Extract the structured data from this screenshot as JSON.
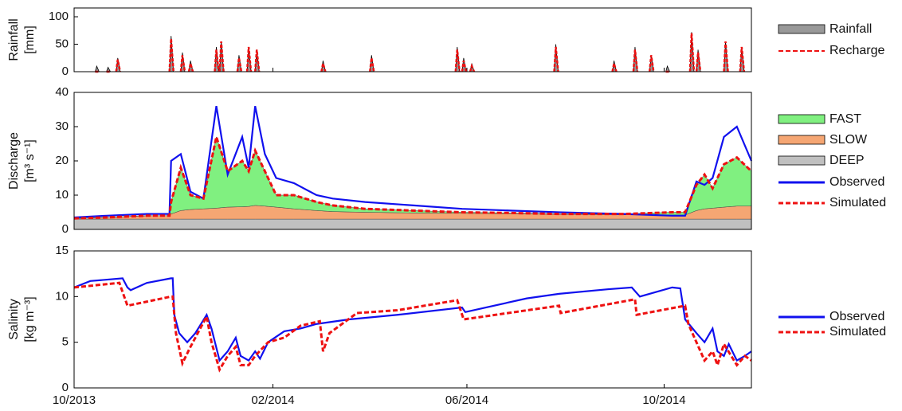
{
  "chart_data": [
    {
      "type": "bar",
      "ylabel": [
        "Rainfall",
        "[mm]"
      ],
      "xlim": [
        0,
        419
      ],
      "ylim": [
        0,
        116
      ],
      "yticks": [
        0,
        50,
        100
      ],
      "series": [
        {
          "name": "Rainfall",
          "color": "#999999",
          "kind": "spike",
          "x": [
            14,
            21,
            27,
            60,
            67,
            72,
            88,
            91,
            102,
            108,
            113,
            154,
            184,
            237,
            241,
            246,
            298,
            334,
            347,
            357,
            367,
            382,
            386,
            403,
            413
          ],
          "values": [
            10,
            8,
            25,
            65,
            35,
            20,
            45,
            55,
            30,
            45,
            40,
            20,
            30,
            45,
            25,
            15,
            50,
            20,
            45,
            30,
            10,
            72,
            40,
            55,
            45
          ]
        },
        {
          "name": "Recharge",
          "color": "#ee1111",
          "kind": "spike",
          "line_style": "dashed",
          "x": [
            14,
            21,
            27,
            60,
            67,
            72,
            88,
            91,
            102,
            108,
            113,
            154,
            184,
            237,
            241,
            246,
            298,
            334,
            347,
            357,
            367,
            382,
            386,
            403,
            413
          ],
          "values": [
            0,
            0,
            22,
            60,
            30,
            15,
            40,
            55,
            25,
            45,
            40,
            15,
            25,
            40,
            20,
            10,
            45,
            15,
            40,
            30,
            0,
            70,
            35,
            55,
            45
          ]
        }
      ]
    },
    {
      "type": "area",
      "ylabel": [
        "Discharge",
        "[m³ s⁻¹]"
      ],
      "xlim": [
        0,
        419
      ],
      "ylim": [
        0,
        40
      ],
      "yticks": [
        0,
        10,
        20,
        30,
        40
      ],
      "x": [
        0,
        20,
        45,
        59,
        60,
        66,
        72,
        80,
        88,
        95,
        104,
        108,
        112,
        118,
        125,
        136,
        150,
        160,
        180,
        210,
        240,
        270,
        300,
        340,
        370,
        378,
        385,
        390,
        395,
        402,
        410,
        419
      ],
      "series": [
        {
          "name": "FAST",
          "color": "#80f080",
          "kind": "area",
          "values": [
            0,
            0,
            0,
            0,
            3.5,
            12.5,
            4.2,
            3,
            20.8,
            10.5,
            13.4,
            10.3,
            16,
            10.2,
            3.5,
            4,
            2.5,
            1.8,
            1,
            0.7,
            0.3,
            0.2,
            0.1,
            0.2,
            0.8,
            0.8,
            7.5,
            10,
            5.8,
            12.5,
            14.2,
            10.2
          ]
        },
        {
          "name": "SLOW",
          "color": "#f5a673",
          "kind": "area",
          "values": [
            0.2,
            0.5,
            1,
            1,
            1.5,
            2.5,
            2.8,
            3,
            3.2,
            3.5,
            3.6,
            3.7,
            4,
            3.8,
            3.5,
            3,
            2.5,
            2.2,
            2,
            1.8,
            1.7,
            1.6,
            1.4,
            1.3,
            1.2,
            1.2,
            2.5,
            3,
            3.2,
            3.5,
            3.8,
            3.8
          ]
        },
        {
          "name": "DEEP",
          "color": "#c0c0c0",
          "kind": "area",
          "values": [
            3,
            3,
            3,
            3,
            3,
            3,
            3,
            3,
            3,
            3,
            3,
            3,
            3,
            3,
            3,
            3,
            3,
            3,
            3,
            3,
            3,
            3,
            3,
            3,
            3,
            3,
            3,
            3,
            3,
            3,
            3,
            3
          ]
        },
        {
          "name": "Observed",
          "color": "#1010ee",
          "kind": "line",
          "values": [
            3.5,
            4,
            4.5,
            4.5,
            20,
            22,
            11,
            9,
            36,
            16,
            27,
            18,
            36,
            22,
            15,
            13.5,
            10,
            9,
            8,
            7,
            6,
            5.5,
            5,
            4.5,
            4,
            4,
            14,
            13,
            15,
            27,
            30,
            20
          ]
        },
        {
          "name": "Simulated",
          "color": "#ee1111",
          "kind": "line",
          "line_style": "dashed",
          "values": [
            3.2,
            3.5,
            4,
            4,
            8,
            18,
            10,
            9,
            27,
            17,
            20,
            17,
            23,
            17,
            10,
            10,
            8,
            7,
            6,
            5.5,
            5,
            4.8,
            4.5,
            4.5,
            5,
            5,
            13,
            16,
            12,
            19,
            21,
            17
          ]
        }
      ]
    },
    {
      "type": "line",
      "ylabel": [
        "Salinity",
        "[kg m⁻³]"
      ],
      "xlim": [
        0,
        419
      ],
      "ylim": [
        0,
        15
      ],
      "yticks": [
        0,
        5,
        10,
        15
      ],
      "xticks": [
        {
          "value": 0,
          "label": "10/2013"
        },
        {
          "value": 123,
          "label": "02/2014"
        },
        {
          "value": 243,
          "label": "06/2014"
        },
        {
          "value": 365,
          "label": "10/2014"
        }
      ],
      "series": [
        {
          "name": "Observed",
          "color": "#1010ee",
          "kind": "line",
          "x": [
            0,
            10,
            30,
            33,
            35,
            45,
            60,
            61,
            62,
            65,
            70,
            75,
            82,
            85,
            90,
            95,
            100,
            103,
            108,
            112,
            115,
            120,
            130,
            140,
            150,
            170,
            200,
            240,
            242,
            280,
            300,
            330,
            345,
            350,
            370,
            375,
            378,
            385,
            390,
            395,
            398,
            402,
            405,
            410,
            415,
            419
          ],
          "values": [
            11,
            11.7,
            12,
            11,
            10.7,
            11.5,
            12,
            12,
            8,
            6,
            5,
            6,
            8,
            6.5,
            3,
            4,
            5.5,
            3.5,
            3,
            4,
            3.2,
            5,
            6.2,
            6.5,
            7,
            7.5,
            8,
            8.8,
            8.3,
            9.8,
            10.3,
            10.8,
            11,
            10,
            11,
            10.9,
            7.5,
            6,
            5,
            6.5,
            4,
            3.5,
            4.8,
            3,
            3.5,
            4
          ]
        },
        {
          "name": "Simulated",
          "color": "#ee1111",
          "kind": "line",
          "line_style": "dashed",
          "x": [
            0,
            28,
            33,
            60,
            61,
            63,
            67,
            72,
            78,
            82,
            85,
            90,
            95,
            100,
            103,
            108,
            112,
            120,
            130,
            140,
            152,
            154,
            158,
            175,
            200,
            237,
            241,
            300,
            301,
            347,
            348,
            378,
            380,
            385,
            390,
            395,
            398,
            402,
            410,
            415,
            419
          ],
          "values": [
            11,
            11.5,
            9,
            10,
            10,
            6,
            2.7,
            4.5,
            6.5,
            7.8,
            5,
            2,
            3.5,
            4.5,
            2.5,
            2.5,
            3.5,
            5,
            5.5,
            6.8,
            7.3,
            4,
            6,
            8.2,
            8.5,
            9.6,
            7.5,
            9,
            8.2,
            9.7,
            8,
            9,
            7,
            5,
            3,
            4,
            2.5,
            4.8,
            2.5,
            3.5,
            3
          ]
        }
      ]
    }
  ]
}
